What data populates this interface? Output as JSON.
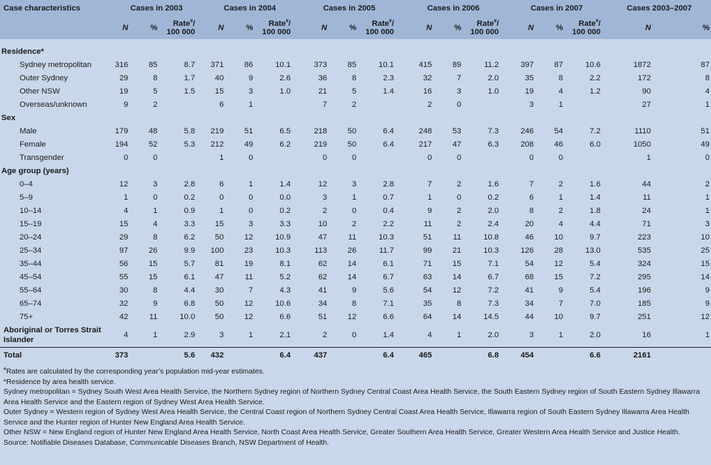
{
  "table": {
    "header": {
      "first": "Case characteristics",
      "groups": [
        "Cases in 2003",
        "Cases in 2004",
        "Cases in 2005",
        "Cases in 2006",
        "Cases in 2007",
        "Cases 2003–2007"
      ],
      "n_label": "N",
      "pct_label": "%",
      "rate_label_1": "Rate",
      "rate_sup": "#",
      "rate_label_1_end": "/",
      "rate_label_2": "100 000"
    },
    "sections": {
      "residence": "Residence*",
      "sex": "Sex",
      "age": "Age group (years)"
    },
    "rows": {
      "sydney_metro": [
        "Sydney metropolitan",
        "316",
        "85",
        "8.7",
        "371",
        "86",
        "10.1",
        "373",
        "85",
        "10.1",
        "415",
        "89",
        "11.2",
        "397",
        "87",
        "10.6",
        "1872",
        "87"
      ],
      "outer_sydney": [
        "Outer Sydney",
        "29",
        "8",
        "1.7",
        "40",
        "9",
        "2.6",
        "36",
        "8",
        "2.3",
        "32",
        "7",
        "2.0",
        "35",
        "8",
        "2.2",
        "172",
        "8"
      ],
      "other_nsw": [
        "Other NSW",
        "19",
        "5",
        "1.5",
        "15",
        "3",
        "1.0",
        "21",
        "5",
        "1.4",
        "16",
        "3",
        "1.0",
        "19",
        "4",
        "1.2",
        "90",
        "4"
      ],
      "overseas": [
        "Overseas/unknown",
        "9",
        "2",
        "",
        "6",
        "1",
        "",
        "7",
        "2",
        "",
        "2",
        "0",
        "",
        "3",
        "1",
        "",
        "27",
        "1"
      ],
      "male": [
        "Male",
        "179",
        "48",
        "5.8",
        "219",
        "51",
        "6.5",
        "218",
        "50",
        "6.4",
        "248",
        "53",
        "7.3",
        "246",
        "54",
        "7.2",
        "1110",
        "51"
      ],
      "female": [
        "Female",
        "194",
        "52",
        "5.3",
        "212",
        "49",
        "6.2",
        "219",
        "50",
        "6.4",
        "217",
        "47",
        "6.3",
        "208",
        "46",
        "6.0",
        "1050",
        "49"
      ],
      "transgender": [
        "Transgender",
        "0",
        "0",
        "",
        "1",
        "0",
        "",
        "0",
        "0",
        "",
        "0",
        "0",
        "",
        "0",
        "0",
        "",
        "1",
        "0"
      ],
      "a0_4": [
        "0–4",
        "12",
        "3",
        "2.8",
        "6",
        "1",
        "1.4",
        "12",
        "3",
        "2.8",
        "7",
        "2",
        "1.6",
        "7",
        "2",
        "1.6",
        "44",
        "2"
      ],
      "a5_9": [
        "5–9",
        "1",
        "0",
        "0.2",
        "0",
        "0",
        "0.0",
        "3",
        "1",
        "0.7",
        "1",
        "0",
        "0.2",
        "6",
        "1",
        "1.4",
        "11",
        "1"
      ],
      "a10_14": [
        "10–14",
        "4",
        "1",
        "0.9",
        "1",
        "0",
        "0.2",
        "2",
        "0",
        "0.4",
        "9",
        "2",
        "2.0",
        "8",
        "2",
        "1.8",
        "24",
        "1"
      ],
      "a15_19": [
        "15–19",
        "15",
        "4",
        "3.3",
        "15",
        "3",
        "3.3",
        "10",
        "2",
        "2.2",
        "11",
        "2",
        "2.4",
        "20",
        "4",
        "4.4",
        "71",
        "3"
      ],
      "a20_24": [
        "20–24",
        "29",
        "8",
        "6.2",
        "50",
        "12",
        "10.9",
        "47",
        "11",
        "10.3",
        "51",
        "11",
        "10.8",
        "46",
        "10",
        "9.7",
        "223",
        "10"
      ],
      "a25_34": [
        "25–34",
        "97",
        "26",
        "9.9",
        "100",
        "23",
        "10.3",
        "113",
        "26",
        "11.7",
        "99",
        "21",
        "10.3",
        "126",
        "28",
        "13.0",
        "535",
        "25"
      ],
      "a35_44": [
        "35–44",
        "56",
        "15",
        "5.7",
        "81",
        "19",
        "8.1",
        "62",
        "14",
        "6.1",
        "71",
        "15",
        "7.1",
        "54",
        "12",
        "5.4",
        "324",
        "15"
      ],
      "a45_54": [
        "45–54",
        "55",
        "15",
        "6.1",
        "47",
        "11",
        "5.2",
        "62",
        "14",
        "6.7",
        "63",
        "14",
        "6.7",
        "68",
        "15",
        "7.2",
        "295",
        "14"
      ],
      "a55_64": [
        "55–64",
        "30",
        "8",
        "4.4",
        "30",
        "7",
        "4.3",
        "41",
        "9",
        "5.6",
        "54",
        "12",
        "7.2",
        "41",
        "9",
        "5.4",
        "196",
        "9"
      ],
      "a65_74": [
        "65–74",
        "32",
        "9",
        "6.8",
        "50",
        "12",
        "10.6",
        "34",
        "8",
        "7.1",
        "35",
        "8",
        "7.3",
        "34",
        "7",
        "7.0",
        "185",
        "9"
      ],
      "a75": [
        "75+",
        "42",
        "11",
        "10.0",
        "50",
        "12",
        "6.6",
        "51",
        "12",
        "6.6",
        "64",
        "14",
        "14.5",
        "44",
        "10",
        "9.7",
        "251",
        "12"
      ],
      "aboriginal": [
        "Aboriginal or Torres Strait Islander",
        "4",
        "1",
        "2.9",
        "3",
        "1",
        "2.1",
        "2",
        "0",
        "1.4",
        "4",
        "1",
        "2.0",
        "3",
        "1",
        "2.0",
        "16",
        "1"
      ],
      "total": [
        "Total",
        "373",
        "",
        "5.6",
        "432",
        "",
        "6.4",
        "437",
        "",
        "6.4",
        "465",
        "",
        "6.8",
        "454",
        "",
        "6.6",
        "2161",
        ""
      ]
    }
  },
  "footnotes": {
    "f1_sup": "#",
    "f1": "Rates are calculated by the corresponding year’s population mid-year estimates.",
    "f2": "*Residence by area health service.",
    "f3": "Sydney metropolitan = Sydney South West Area Health Service, the Northern Sydney region of Northern Sydney Central Coast Area Health Service, the South Eastern Sydney region of South Eastern Sydney Illawarra Area Health Service and the Eastern region of Sydney West Area Health Service.",
    "f4": "Outer Sydney = Western region of Sydney West Area Health Service, the Central Coast region of Northern Sydney Central Coast Area Health Service, Illawarra region of South Eastern Sydney Illawarra Area Health Service and the Hunter region of Hunter New England Area Health Service.",
    "f5": "Other NSW = New England region of Hunter New England Area Health Service, North Coast Area Health Service, Greater Southern Area Health Service, Greater Western Area Health Service and Justice Health.",
    "f6": "Source: Notifiable Diseases Database, Communicable Diseases Branch, NSW Department of Health."
  }
}
